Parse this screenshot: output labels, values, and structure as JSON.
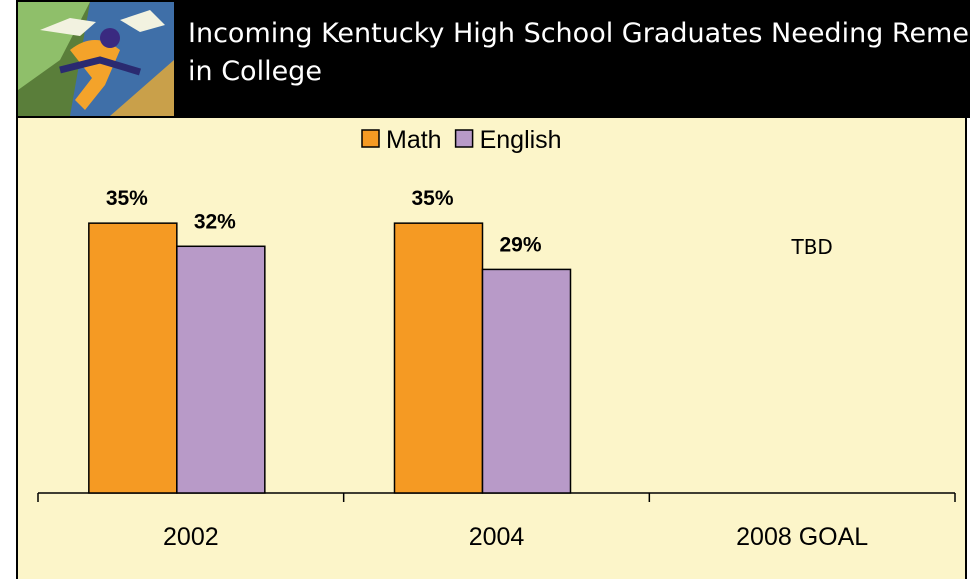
{
  "chart_data": {
    "type": "bar",
    "title": "Incoming Kentucky High School Graduates Needing Remediation in College",
    "categories": [
      "2002",
      "2004",
      "2008 GOAL"
    ],
    "series": [
      {
        "name": "Math",
        "color": "#f59a23",
        "values": [
          35,
          35,
          null
        ],
        "value_labels": [
          "35%",
          "35%",
          null
        ]
      },
      {
        "name": "English",
        "color": "#b89ac8",
        "values": [
          32,
          29,
          null
        ],
        "value_labels": [
          "32%",
          "29%",
          null
        ]
      }
    ],
    "annotations": [
      {
        "text": "TBD",
        "category": "2008 GOAL"
      }
    ],
    "legend": "top"
  }
}
